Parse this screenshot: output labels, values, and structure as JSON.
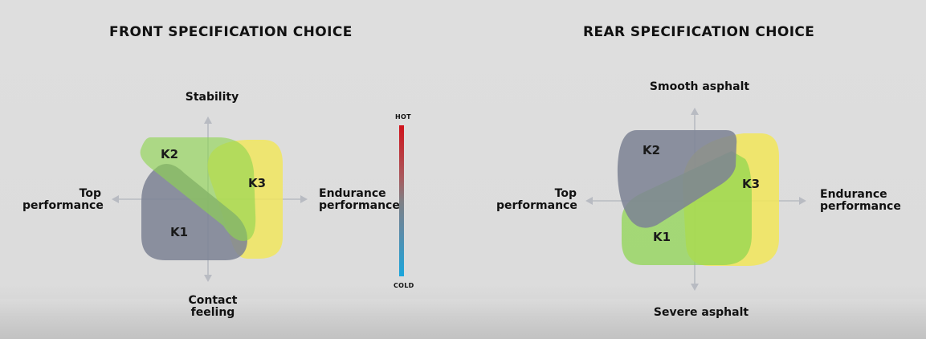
{
  "front": {
    "title": "FRONT SPECIFICATION CHOICE",
    "axes": {
      "top": "Stability",
      "bottom_line1": "Contact",
      "bottom_line2": "feeling",
      "left_line1": "Top",
      "left_line2": "performance",
      "right_line1": "Endurance",
      "right_line2": "performance"
    },
    "compounds": {
      "k1": "K1",
      "k2": "K2",
      "k3": "K3"
    }
  },
  "scale": {
    "hot": "HOT",
    "cold": "COLD"
  },
  "rear": {
    "title": "REAR SPECIFICATION CHOICE",
    "axes": {
      "top": "Smooth asphalt",
      "bottom": "Severe asphalt",
      "left_line1": "Top",
      "left_line2": "performance",
      "right_line1": "Endurance",
      "right_line2": "performance"
    },
    "compounds": {
      "k1": "K1",
      "k2": "K2",
      "k3": "K3"
    }
  },
  "colors": {
    "k1_gray": "#7d8294",
    "k2_green": "#8ed54f",
    "k3_yellow": "#f2e659",
    "axis": "#b9bcc3",
    "text": "#111111"
  }
}
